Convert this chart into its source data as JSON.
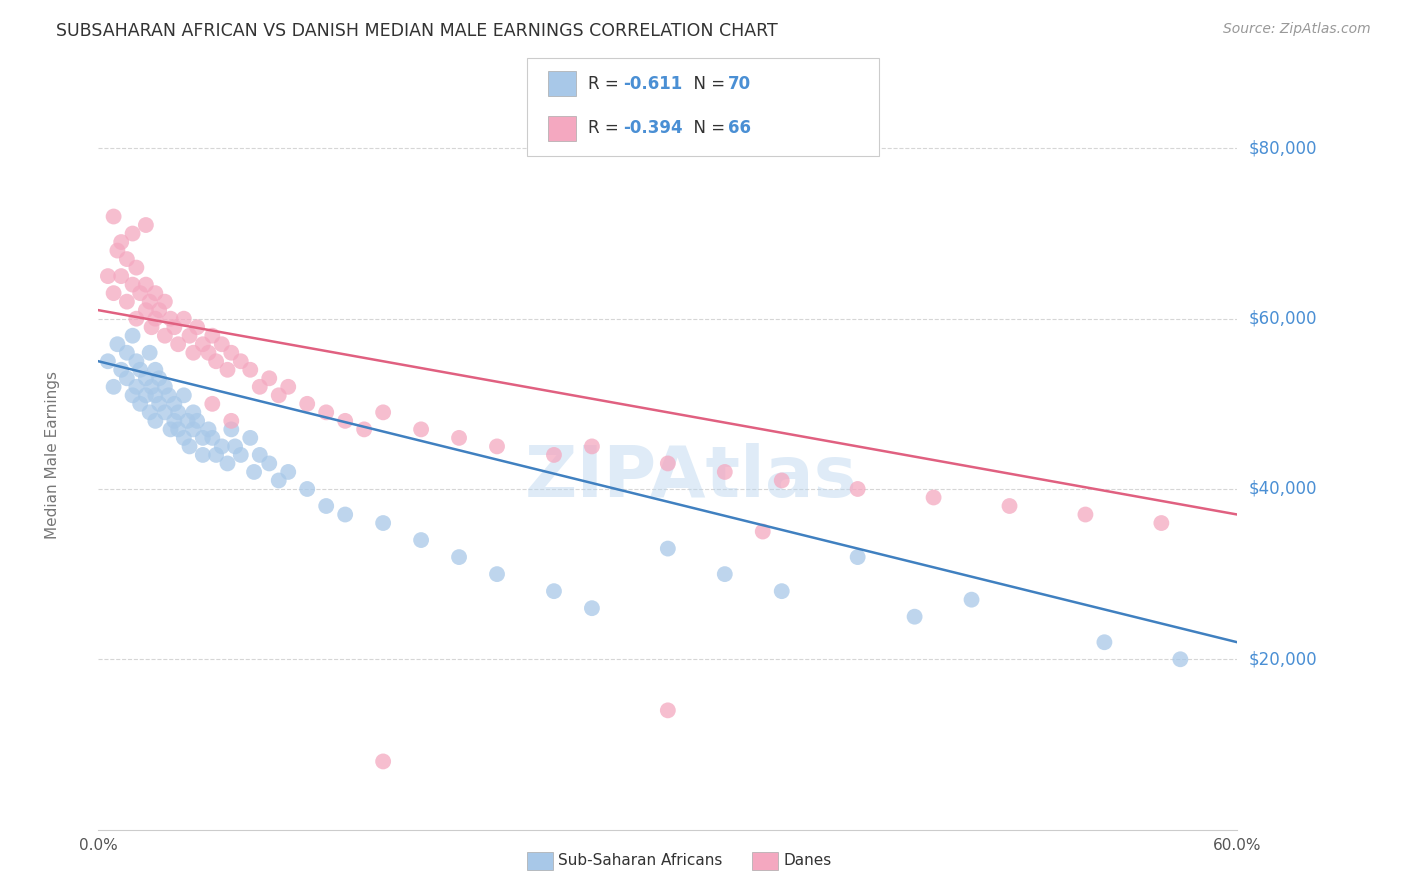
{
  "title": "SUBSAHARAN AFRICAN VS DANISH MEDIAN MALE EARNINGS CORRELATION CHART",
  "source": "Source: ZipAtlas.com",
  "ylabel": "Median Male Earnings",
  "x_min": 0.0,
  "x_max": 0.6,
  "y_min": 0,
  "y_max": 88000,
  "yticks": [
    20000,
    40000,
    60000,
    80000
  ],
  "ytick_labels": [
    "$20,000",
    "$40,000",
    "$60,000",
    "$80,000"
  ],
  "xticks": [
    0.0,
    0.1,
    0.2,
    0.3,
    0.4,
    0.5,
    0.6
  ],
  "xtick_labels": [
    "0.0%",
    "",
    "",
    "",
    "",
    "",
    "60.0%"
  ],
  "blue_color": "#a8c8e8",
  "pink_color": "#f4a8c0",
  "blue_line_color": "#4080c0",
  "pink_line_color": "#e06080",
  "watermark": "ZIPAtlas",
  "watermark_color": "#b8d4ee",
  "blue_intercept": 55000,
  "blue_slope": -55000,
  "pink_intercept": 61000,
  "pink_slope": -40000,
  "blue_scatter_x": [
    0.005,
    0.008,
    0.01,
    0.012,
    0.015,
    0.015,
    0.018,
    0.018,
    0.02,
    0.02,
    0.022,
    0.022,
    0.025,
    0.025,
    0.027,
    0.027,
    0.028,
    0.03,
    0.03,
    0.03,
    0.032,
    0.032,
    0.035,
    0.035,
    0.037,
    0.038,
    0.04,
    0.04,
    0.042,
    0.042,
    0.045,
    0.045,
    0.047,
    0.048,
    0.05,
    0.05,
    0.052,
    0.055,
    0.055,
    0.058,
    0.06,
    0.062,
    0.065,
    0.068,
    0.07,
    0.072,
    0.075,
    0.08,
    0.082,
    0.085,
    0.09,
    0.095,
    0.1,
    0.11,
    0.12,
    0.13,
    0.15,
    0.17,
    0.19,
    0.21,
    0.24,
    0.26,
    0.3,
    0.33,
    0.36,
    0.4,
    0.43,
    0.46,
    0.53,
    0.57
  ],
  "blue_scatter_y": [
    55000,
    52000,
    57000,
    54000,
    56000,
    53000,
    58000,
    51000,
    55000,
    52000,
    54000,
    50000,
    53000,
    51000,
    56000,
    49000,
    52000,
    54000,
    51000,
    48000,
    53000,
    50000,
    52000,
    49000,
    51000,
    47000,
    50000,
    48000,
    49000,
    47000,
    51000,
    46000,
    48000,
    45000,
    49000,
    47000,
    48000,
    46000,
    44000,
    47000,
    46000,
    44000,
    45000,
    43000,
    47000,
    45000,
    44000,
    46000,
    42000,
    44000,
    43000,
    41000,
    42000,
    40000,
    38000,
    37000,
    36000,
    34000,
    32000,
    30000,
    28000,
    26000,
    33000,
    30000,
    28000,
    32000,
    25000,
    27000,
    22000,
    20000
  ],
  "pink_scatter_x": [
    0.005,
    0.008,
    0.01,
    0.012,
    0.015,
    0.015,
    0.018,
    0.02,
    0.02,
    0.022,
    0.025,
    0.025,
    0.027,
    0.028,
    0.03,
    0.03,
    0.032,
    0.035,
    0.035,
    0.038,
    0.04,
    0.042,
    0.045,
    0.048,
    0.05,
    0.052,
    0.055,
    0.058,
    0.06,
    0.062,
    0.065,
    0.068,
    0.07,
    0.075,
    0.08,
    0.085,
    0.09,
    0.095,
    0.1,
    0.11,
    0.12,
    0.13,
    0.14,
    0.15,
    0.17,
    0.19,
    0.21,
    0.24,
    0.26,
    0.3,
    0.33,
    0.36,
    0.4,
    0.44,
    0.48,
    0.52,
    0.56,
    0.008,
    0.012,
    0.018,
    0.025,
    0.06,
    0.07,
    0.3,
    0.15,
    0.35
  ],
  "pink_scatter_y": [
    65000,
    63000,
    68000,
    65000,
    67000,
    62000,
    64000,
    66000,
    60000,
    63000,
    64000,
    61000,
    62000,
    59000,
    63000,
    60000,
    61000,
    62000,
    58000,
    60000,
    59000,
    57000,
    60000,
    58000,
    56000,
    59000,
    57000,
    56000,
    58000,
    55000,
    57000,
    54000,
    56000,
    55000,
    54000,
    52000,
    53000,
    51000,
    52000,
    50000,
    49000,
    48000,
    47000,
    49000,
    47000,
    46000,
    45000,
    44000,
    45000,
    43000,
    42000,
    41000,
    40000,
    39000,
    38000,
    37000,
    36000,
    72000,
    69000,
    70000,
    71000,
    50000,
    48000,
    14000,
    8000,
    35000
  ],
  "background_color": "#ffffff",
  "grid_color": "#cccccc",
  "title_color": "#333333",
  "axis_label_color": "#777777",
  "ytick_label_color": "#4a8fd4",
  "source_color": "#999999",
  "legend_r_color": "#4a8fd4",
  "legend_n_color": "#e05070"
}
